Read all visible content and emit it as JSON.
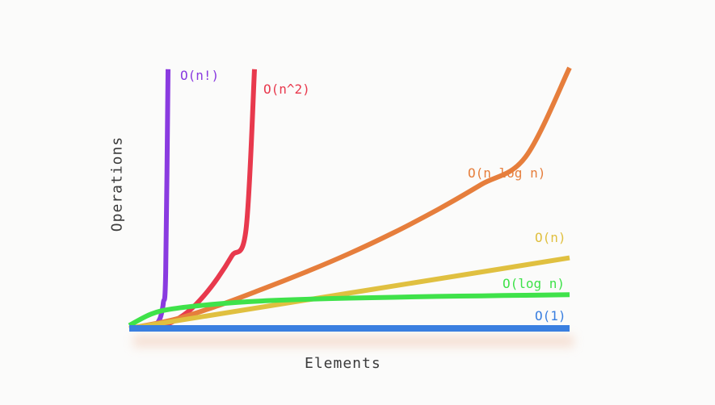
{
  "chart_data": {
    "type": "line",
    "title": "",
    "xlabel": "Elements",
    "ylabel": "Operations",
    "grid": false,
    "legend": "inline-labels",
    "series": [
      {
        "name": "O(n!)",
        "color": "#8a3be0",
        "x": [
          0,
          0.5,
          1,
          1.5,
          2,
          2.5,
          3,
          3.5,
          4,
          4.5
        ],
        "y": [
          0.01,
          0.02,
          0.04,
          0.08,
          0.14,
          0.25,
          0.45,
          0.9,
          1.95,
          9.0
        ]
      },
      {
        "name": "O(n^2)",
        "color": "#e8394d",
        "x": [
          0,
          2,
          4,
          6,
          8,
          10,
          12,
          14,
          15.2
        ],
        "y": [
          0.01,
          0.07,
          0.28,
          0.62,
          1.12,
          1.75,
          2.52,
          3.43,
          9.0
        ]
      },
      {
        "name": "O(n log n)",
        "color": "#e67e3c",
        "x": [
          0,
          10,
          20,
          30,
          40,
          50,
          60,
          70,
          80,
          90,
          100
        ],
        "y": [
          0,
          0.3,
          0.78,
          1.35,
          1.95,
          2.6,
          3.32,
          4.12,
          5.0,
          5.95,
          9.05
        ]
      },
      {
        "name": "O(n)",
        "color": "#e0c040",
        "x": [
          0,
          100
        ],
        "y": [
          0,
          2.45
        ]
      },
      {
        "name": "O(log n)",
        "color": "#3fe24a",
        "x": [
          0,
          5,
          10,
          20,
          30,
          40,
          50,
          60,
          70,
          80,
          90,
          100
        ],
        "y": [
          0.1,
          0.5,
          0.68,
          0.85,
          0.95,
          1.01,
          1.05,
          1.08,
          1.11,
          1.13,
          1.15,
          1.17
        ]
      },
      {
        "name": "O(1)",
        "color": "#3a7fe0",
        "x": [
          0,
          100
        ],
        "y": [
          0,
          0
        ]
      }
    ]
  },
  "labels": {
    "xlabel": "Elements",
    "ylabel": "Operations"
  }
}
